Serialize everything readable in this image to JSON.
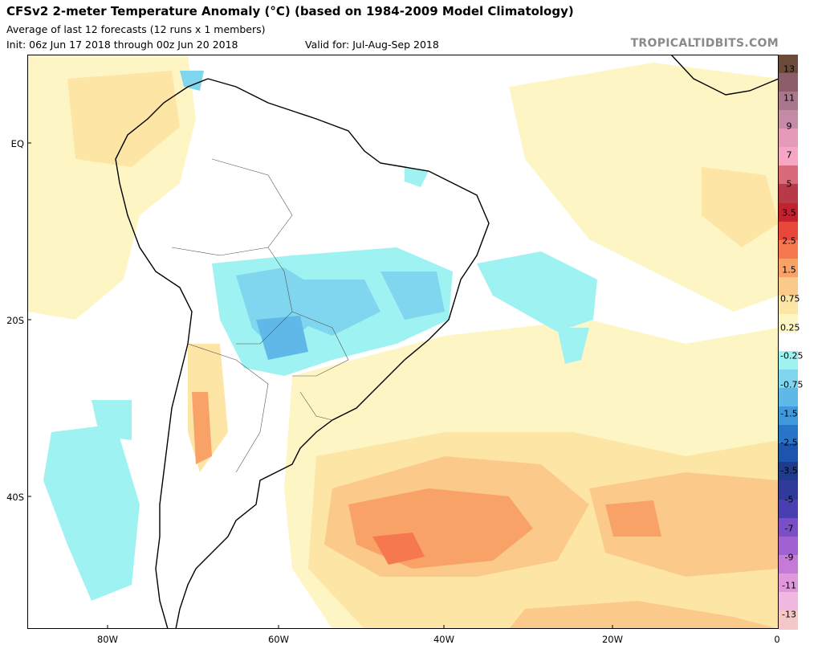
{
  "header": {
    "title": "CFSv2 2-meter Temperature Anomaly (°C) (based on 1984-2009 Model Climatology)",
    "subtitle": "Average of last 12 forecasts (12 runs x 1 members)",
    "init": "Init: 06z Jun 17 2018 through 00z Jun 20 2018",
    "valid": "Valid for: Jul-Aug-Sep 2018",
    "brand": "TROPICALTIDBITS.COM"
  },
  "axes": {
    "lat_labels": [
      "EQ",
      "20S",
      "40S"
    ],
    "lon_labels": [
      "80W",
      "60W",
      "40W",
      "20W",
      "0"
    ]
  },
  "colorbar": {
    "labels": [
      "13",
      "11",
      "9",
      "7",
      "5",
      "3.5",
      "2.5",
      "1.5",
      "0.75",
      "0.25",
      "-0.25",
      "-0.75",
      "-1.5",
      "-2.5",
      "-3.5",
      "-5",
      "-7",
      "-9",
      "-11",
      "-13"
    ],
    "colors": [
      "#6b4a3a",
      "#8c5e6a",
      "#a8778e",
      "#c48aa6",
      "#e49ab8",
      "#f6a6c4",
      "#d86a7a",
      "#b83a48",
      "#c2222e",
      "#e8483a",
      "#f5784e",
      "#f8a267",
      "#fbc98a",
      "#fde5a6",
      "#fdf6c4",
      "#ffffff",
      "#9ff2f2",
      "#7fd6ee",
      "#5fb8e8",
      "#3f98dc",
      "#2a74c8",
      "#1d54ad",
      "#1f3b8c",
      "#2f3a9a",
      "#4a3fb2",
      "#7a4ec6",
      "#a062d0",
      "#c47ad6",
      "#e098dc",
      "#f0b8e0",
      "#f5c8c8"
    ]
  },
  "map": {
    "colors": {
      "ocean_base": "#ffffff",
      "warm_025": "#fdf6c4",
      "warm_075": "#fde5a6",
      "warm_15": "#fbc98a",
      "warm_25": "#f8a267",
      "warm_35": "#f5784e",
      "cool_025": "#9ff2f2",
      "cool_075": "#7fd6ee",
      "cool_15": "#5fb8e8",
      "outline": "#000000",
      "border": "#555555"
    }
  }
}
